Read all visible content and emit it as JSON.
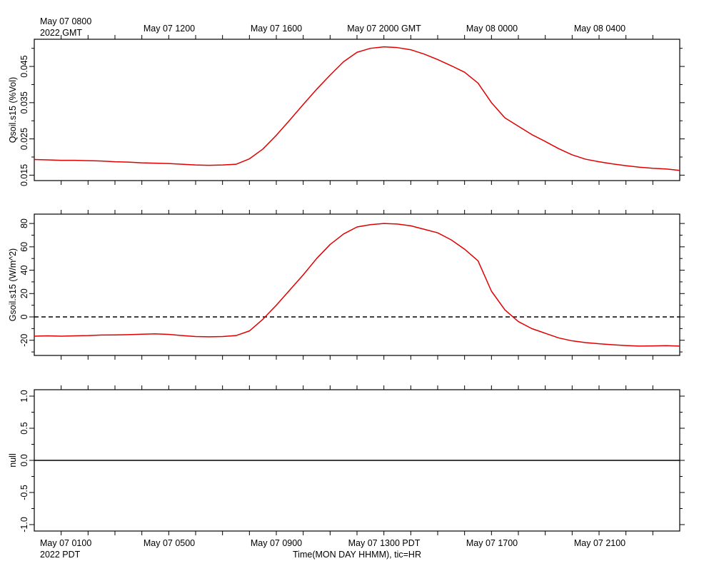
{
  "header": {
    "start_label": "May 07 0800",
    "year_tz_label": "2022 GMT"
  },
  "footer": {
    "start_label": "May 07 0100",
    "year_tz_label": "2022 PDT",
    "axis_title": "Time(MON DAY HHMM), tic=HR"
  },
  "top_axis_labels": [
    "May 07 1200",
    "May 07 1600",
    "May 07 2000 GMT",
    "May 08 0000",
    "May 08 0400"
  ],
  "bottom_axis_labels": [
    "May 07 0500",
    "May 07 0900",
    "May 07 1300 PDT",
    "May 07 1700",
    "May 07 2100"
  ],
  "chart_data": [
    {
      "type": "line",
      "ylabel": "Qsoil.s15 (%Vol)",
      "ylim": [
        0.0135,
        0.0525
      ],
      "yticks": [
        0.015,
        0.025,
        0.035,
        0.045
      ],
      "ytick_labels": [
        "0.015",
        "0.025",
        "0.035",
        "0.045"
      ],
      "line_color": "#e00000",
      "series": [
        {
          "x_hours": [
            0,
            0.5,
            1,
            1.5,
            2,
            2.5,
            3,
            3.5,
            4,
            4.5,
            5,
            5.5,
            6,
            6.5,
            7,
            7.5,
            8,
            8.5,
            9,
            9.5,
            10,
            10.5,
            11,
            11.5,
            12,
            12.5,
            13,
            13.5,
            14,
            14.5,
            15,
            15.5,
            16,
            16.5,
            17,
            17.5,
            18,
            18.5,
            19,
            19.5,
            20,
            20.5,
            21,
            21.5,
            22,
            22.5,
            23,
            23.5,
            24
          ],
          "values": [
            0.0193,
            0.0192,
            0.0191,
            0.0191,
            0.019,
            0.0189,
            0.0187,
            0.0186,
            0.0184,
            0.0183,
            0.0182,
            0.018,
            0.0178,
            0.0177,
            0.0178,
            0.018,
            0.0195,
            0.0222,
            0.026,
            0.0302,
            0.0345,
            0.0387,
            0.0426,
            0.0463,
            0.0489,
            0.05,
            0.0504,
            0.0502,
            0.0496,
            0.0484,
            0.0469,
            0.0452,
            0.0434,
            0.0404,
            0.035,
            0.0308,
            0.0285,
            0.0262,
            0.0243,
            0.0223,
            0.0206,
            0.0194,
            0.0187,
            0.0181,
            0.0176,
            0.0172,
            0.0169,
            0.0167,
            0.0163
          ]
        }
      ]
    },
    {
      "type": "line",
      "ylabel": "Gsoil.s15 (W/m^2)",
      "ylim": [
        -33,
        88
      ],
      "yticks": [
        -20,
        0,
        20,
        40,
        60,
        80
      ],
      "ytick_labels": [
        "-20",
        "0",
        "20",
        "40",
        "60",
        "80"
      ],
      "line_color": "#e00000",
      "reference_line": 0,
      "series": [
        {
          "x_hours": [
            0,
            0.5,
            1,
            1.5,
            2,
            2.5,
            3,
            3.5,
            4,
            4.5,
            5,
            5.5,
            6,
            6.5,
            7,
            7.5,
            8,
            8.5,
            9,
            9.5,
            10,
            10.5,
            11,
            11.5,
            12,
            12.5,
            13,
            13.5,
            14,
            14.5,
            15,
            15.5,
            16,
            16.5,
            17,
            17.5,
            18,
            18.5,
            19,
            19.5,
            20,
            20.5,
            21,
            21.5,
            22,
            22.5,
            23,
            23.5,
            24
          ],
          "values": [
            -16.5,
            -16.2,
            -16.5,
            -16.2,
            -16.0,
            -15.5,
            -15.4,
            -15.2,
            -14.8,
            -14.5,
            -15.0,
            -16.0,
            -16.8,
            -17.0,
            -16.8,
            -16.0,
            -12.0,
            -2.0,
            10.0,
            23.0,
            36.0,
            50.0,
            62.0,
            71.0,
            77.0,
            79.0,
            80.0,
            79.5,
            78.0,
            75.0,
            72.0,
            66.0,
            58.0,
            48.0,
            22.0,
            6.0,
            -4.0,
            -10.0,
            -14.0,
            -18.0,
            -20.5,
            -22.0,
            -23.0,
            -23.8,
            -24.5,
            -25.0,
            -24.8,
            -24.6,
            -25.0
          ]
        }
      ]
    },
    {
      "type": "line",
      "ylabel": "null",
      "ylim": [
        -1.1,
        1.1
      ],
      "yticks": [
        -1.0,
        -0.5,
        0.0,
        0.5,
        1.0
      ],
      "ytick_labels": [
        "-1.0",
        "-0.5",
        "0.0",
        "0.5",
        "1.0"
      ],
      "line_color": "#000000",
      "series": [
        {
          "x_hours": [
            0,
            24
          ],
          "values": [
            0,
            0
          ]
        }
      ]
    }
  ]
}
